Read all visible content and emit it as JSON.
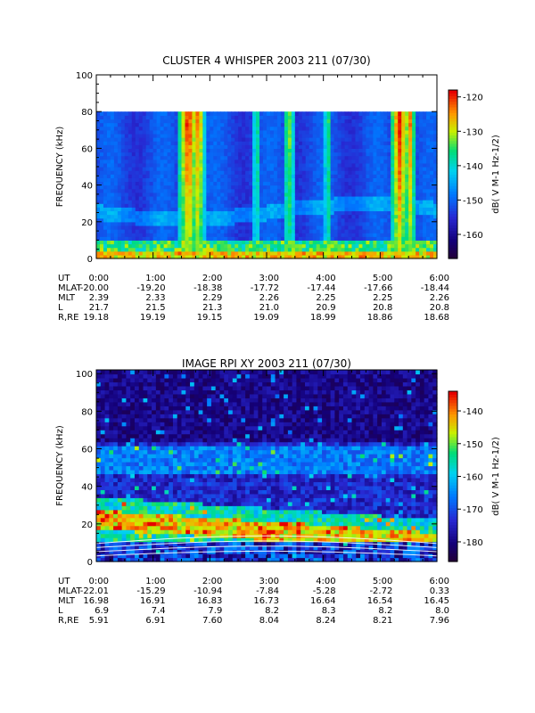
{
  "chart_data": [
    {
      "type": "heatmap",
      "title": "CLUSTER 4 WHISPER 2003 211 (07/30)",
      "ylabel": "FREQUENCY (kHz)",
      "ylim": [
        0,
        100
      ],
      "yticks": [
        "0",
        "20",
        "40",
        "60",
        "80",
        "100"
      ],
      "data_ymax": 80,
      "xlim": [
        "0:00",
        "6:00"
      ],
      "colorbar": {
        "label": "dB( V M-1 Hz-1/2)",
        "range": [
          -167,
          -118
        ],
        "ticks": [
          "-120",
          "-130",
          "-140",
          "-150",
          "-160"
        ]
      },
      "ephemeris": {
        "labels": [
          "UT",
          "MLAT",
          "MLT",
          "L",
          "R,RE"
        ],
        "times": [
          "0:00",
          "1:00",
          "2:00",
          "3:00",
          "4:00",
          "5:00",
          "6:00"
        ],
        "MLAT": [
          "-20.00",
          "-19.20",
          "-18.38",
          "-17.72",
          "-17.44",
          "-17.66",
          "-18.44"
        ],
        "MLT": [
          "2.39",
          "2.33",
          "2.29",
          "2.26",
          "2.25",
          "2.25",
          "2.26"
        ],
        "L": [
          "21.7",
          "21.5",
          "21.3",
          "21.0",
          "20.9",
          "20.8",
          "20.8"
        ],
        "R,RE": [
          "19.18",
          "19.19",
          "19.15",
          "19.09",
          "18.99",
          "18.86",
          "18.68"
        ]
      }
    },
    {
      "type": "heatmap",
      "title": "IMAGE RPI XY 2003 211 (07/30)",
      "ylabel": "FREQUENCY (kHz)",
      "ylim": [
        0,
        102
      ],
      "yticks": [
        "0",
        "20",
        "40",
        "60",
        "80",
        "100"
      ],
      "data_ymax": 102,
      "xlim": [
        "0:00",
        "6:00"
      ],
      "colorbar": {
        "label": "dB( V M-1 Hz-1/2)",
        "range": [
          -186,
          -134
        ],
        "ticks": [
          "-140",
          "-150",
          "-160",
          "-170",
          "-180"
        ]
      },
      "ephemeris": {
        "labels": [
          "UT",
          "MLAT",
          "MLT",
          "L",
          "R,RE"
        ],
        "times": [
          "0:00",
          "1:00",
          "2:00",
          "3:00",
          "4:00",
          "5:00",
          "6:00"
        ],
        "MLAT": [
          "-22.01",
          "-15.29",
          "-10.94",
          "-7.84",
          "-5.28",
          "-2.72",
          "0.33"
        ],
        "MLT": [
          "16.98",
          "16.91",
          "16.83",
          "16.73",
          "16.64",
          "16.54",
          "16.45"
        ],
        "L": [
          "6.9",
          "7.4",
          "7.9",
          "8.2",
          "8.3",
          "8.2",
          "8.0"
        ],
        "R,RE": [
          "5.91",
          "6.91",
          "7.60",
          "8.04",
          "8.24",
          "8.21",
          "7.96"
        ]
      }
    }
  ]
}
